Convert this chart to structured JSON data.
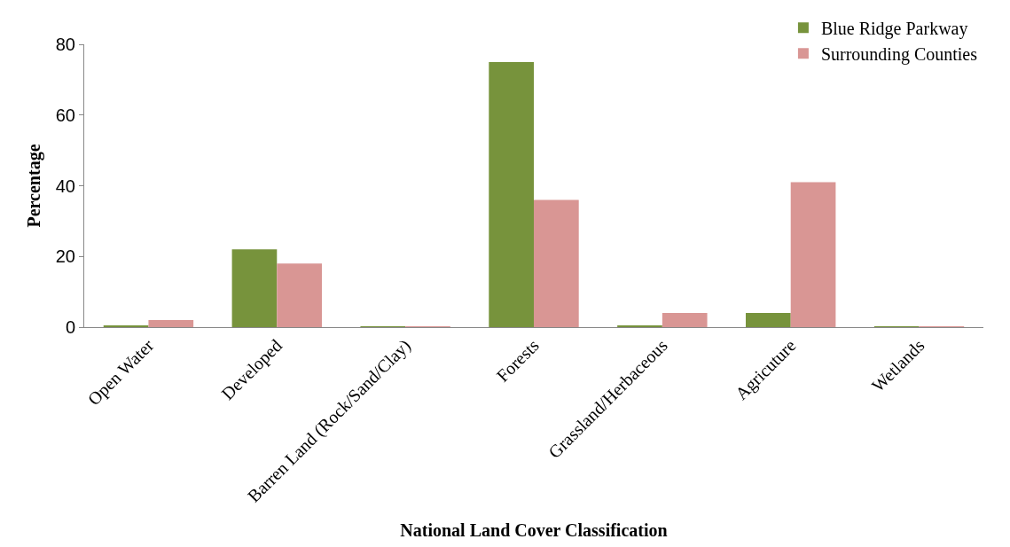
{
  "chart_data": {
    "type": "bar",
    "xlabel": "National Land Cover Classification",
    "ylabel": "Percentage",
    "categories": [
      "Open Water",
      "Developed",
      "Barren Land (Rock/Sand/Clay)",
      "Forests",
      "Grassland/Herbaceous",
      "Agricuture",
      "Wetlands"
    ],
    "series": [
      {
        "name": "Blue Ridge Parkway",
        "color": "#77933c",
        "values": [
          0.3,
          22,
          0.1,
          75,
          0.5,
          4,
          0.1
        ]
      },
      {
        "name": "Surrounding Counties",
        "color": "#d99694",
        "values": [
          2,
          18,
          0.2,
          36,
          4,
          41,
          0.1
        ]
      }
    ],
    "ylim": [
      0,
      80
    ],
    "yticks": [
      0,
      20,
      40,
      60,
      80
    ],
    "grid": false,
    "legend": "top right"
  }
}
